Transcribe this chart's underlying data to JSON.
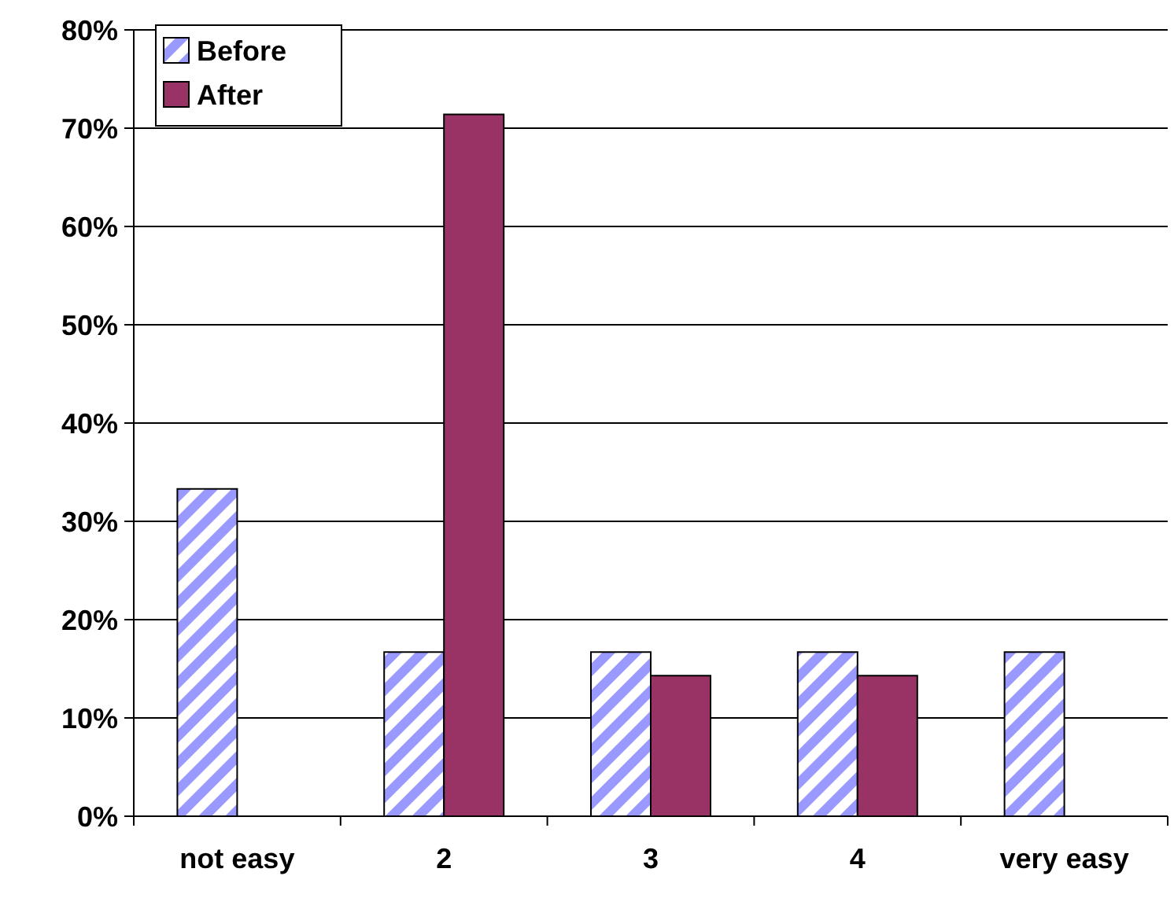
{
  "chart_data": {
    "type": "bar",
    "categories": [
      "not easy",
      "2",
      "3",
      "4",
      "very easy"
    ],
    "series": [
      {
        "name": "Before",
        "color": "#9999ff",
        "values": [
          33.3,
          16.7,
          16.7,
          16.7,
          16.7
        ]
      },
      {
        "name": "After",
        "color": "#993366",
        "values": [
          0,
          71.4,
          14.3,
          14.3,
          0
        ]
      }
    ],
    "ylim": [
      0,
      80
    ],
    "yticks": [
      {
        "value": 0,
        "label": "0%"
      },
      {
        "value": 10,
        "label": "10%"
      },
      {
        "value": 20,
        "label": "20%"
      },
      {
        "value": 30,
        "label": "30%"
      },
      {
        "value": 40,
        "label": "40%"
      },
      {
        "value": 50,
        "label": "50%"
      },
      {
        "value": 60,
        "label": "60%"
      },
      {
        "value": 70,
        "label": "70%"
      },
      {
        "value": 80,
        "label": "80%"
      }
    ],
    "grid": "y",
    "legend": "top left"
  }
}
